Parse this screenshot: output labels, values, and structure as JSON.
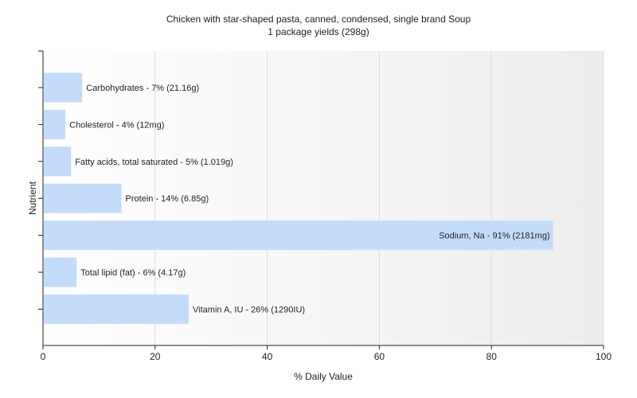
{
  "chart_data": {
    "type": "bar",
    "orientation": "horizontal",
    "title": "Chicken with star-shaped pasta, canned, condensed, single brand Soup",
    "subtitle": "1 package yields (298g)",
    "xlabel": "% Daily Value",
    "ylabel": "Nutrient",
    "xlim": [
      0,
      100
    ],
    "xticks": [
      0,
      20,
      40,
      60,
      80,
      100
    ],
    "grid": true,
    "bar_color": "#c4dcfc",
    "categories": [
      "Carbohydrates",
      "Cholesterol",
      "Fatty acids, total saturated",
      "Protein",
      "Sodium, Na",
      "Total lipid (fat)",
      "Vitamin A, IU"
    ],
    "values": [
      7,
      4,
      5,
      14,
      91,
      6,
      26
    ],
    "labels": [
      "Carbohydrates - 7% (21.16g)",
      "Cholesterol - 4% (12mg)",
      "Fatty acids, total saturated - 5% (1.019g)",
      "Protein - 14% (6.85g)",
      "Sodium, Na - 91% (2181mg)",
      "Total lipid (fat) - 6% (4.17g)",
      "Vitamin A, IU - 26% (1290IU)"
    ]
  }
}
